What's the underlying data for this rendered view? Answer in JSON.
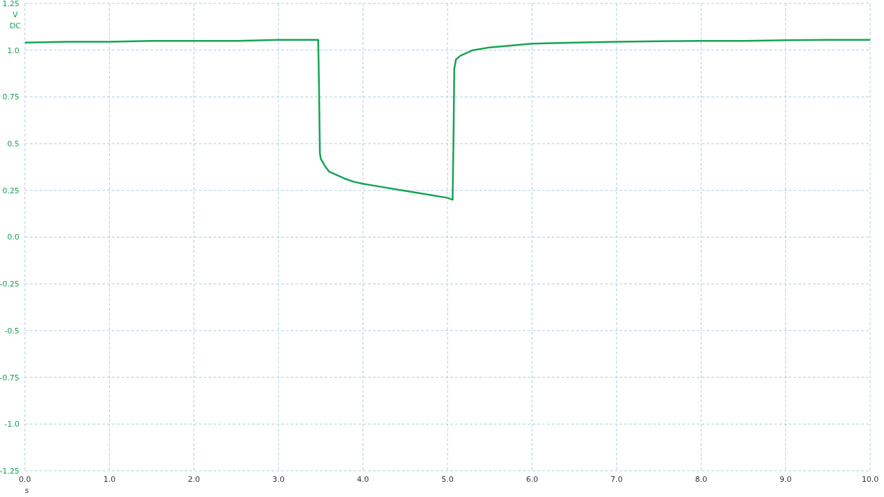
{
  "chart_data": {
    "type": "line",
    "xlabel": "s",
    "ylabel": "V DC",
    "x": [
      0,
      0.5,
      1,
      1.5,
      2,
      2.5,
      3,
      3.3,
      3.47,
      3.48,
      3.49,
      3.5,
      3.55,
      3.6,
      3.7,
      3.8,
      3.9,
      4.0,
      4.2,
      4.4,
      4.6,
      4.8,
      5.0,
      5.06,
      5.07,
      5.08,
      5.1,
      5.15,
      5.2,
      5.3,
      5.5,
      5.75,
      6,
      6.5,
      7,
      7.5,
      8,
      8.5,
      9,
      9.5,
      10
    ],
    "series": [
      {
        "color": "#12a352",
        "values": [
          1.04,
          1.045,
          1.045,
          1.05,
          1.05,
          1.05,
          1.055,
          1.055,
          1.055,
          0.8,
          0.45,
          0.42,
          0.38,
          0.35,
          0.33,
          0.31,
          0.295,
          0.285,
          0.27,
          0.255,
          0.24,
          0.225,
          0.21,
          0.2,
          0.5,
          0.9,
          0.95,
          0.97,
          0.98,
          1.0,
          1.015,
          1.025,
          1.035,
          1.04,
          1.045,
          1.048,
          1.05,
          1.05,
          1.053,
          1.055,
          1.055
        ]
      }
    ],
    "xlim": [
      0,
      10
    ],
    "ylim": [
      -1.25,
      1.25
    ],
    "xticks": [
      {
        "value": 0,
        "label": "0.0"
      },
      {
        "value": 1,
        "label": "1.0"
      },
      {
        "value": 2,
        "label": "2.0"
      },
      {
        "value": 3,
        "label": "3.0"
      },
      {
        "value": 4,
        "label": "4.0"
      },
      {
        "value": 5,
        "label": "5.0"
      },
      {
        "value": 6,
        "label": "6.0"
      },
      {
        "value": 7,
        "label": "7.0"
      },
      {
        "value": 8,
        "label": "8.0"
      },
      {
        "value": 9,
        "label": "9.0"
      },
      {
        "value": 10,
        "label": "10.0"
      }
    ],
    "yticks": [
      1.25,
      {
        "value": 1,
        "label": "1.0"
      },
      0.75,
      0.5,
      0.25,
      {
        "value": 0,
        "label": "0.0"
      },
      -0.25,
      -0.5,
      -0.75,
      {
        "value": -1,
        "label": "-1.0"
      },
      -1.25
    ],
    "grid": true,
    "marker": "none",
    "line_style": "solid"
  }
}
